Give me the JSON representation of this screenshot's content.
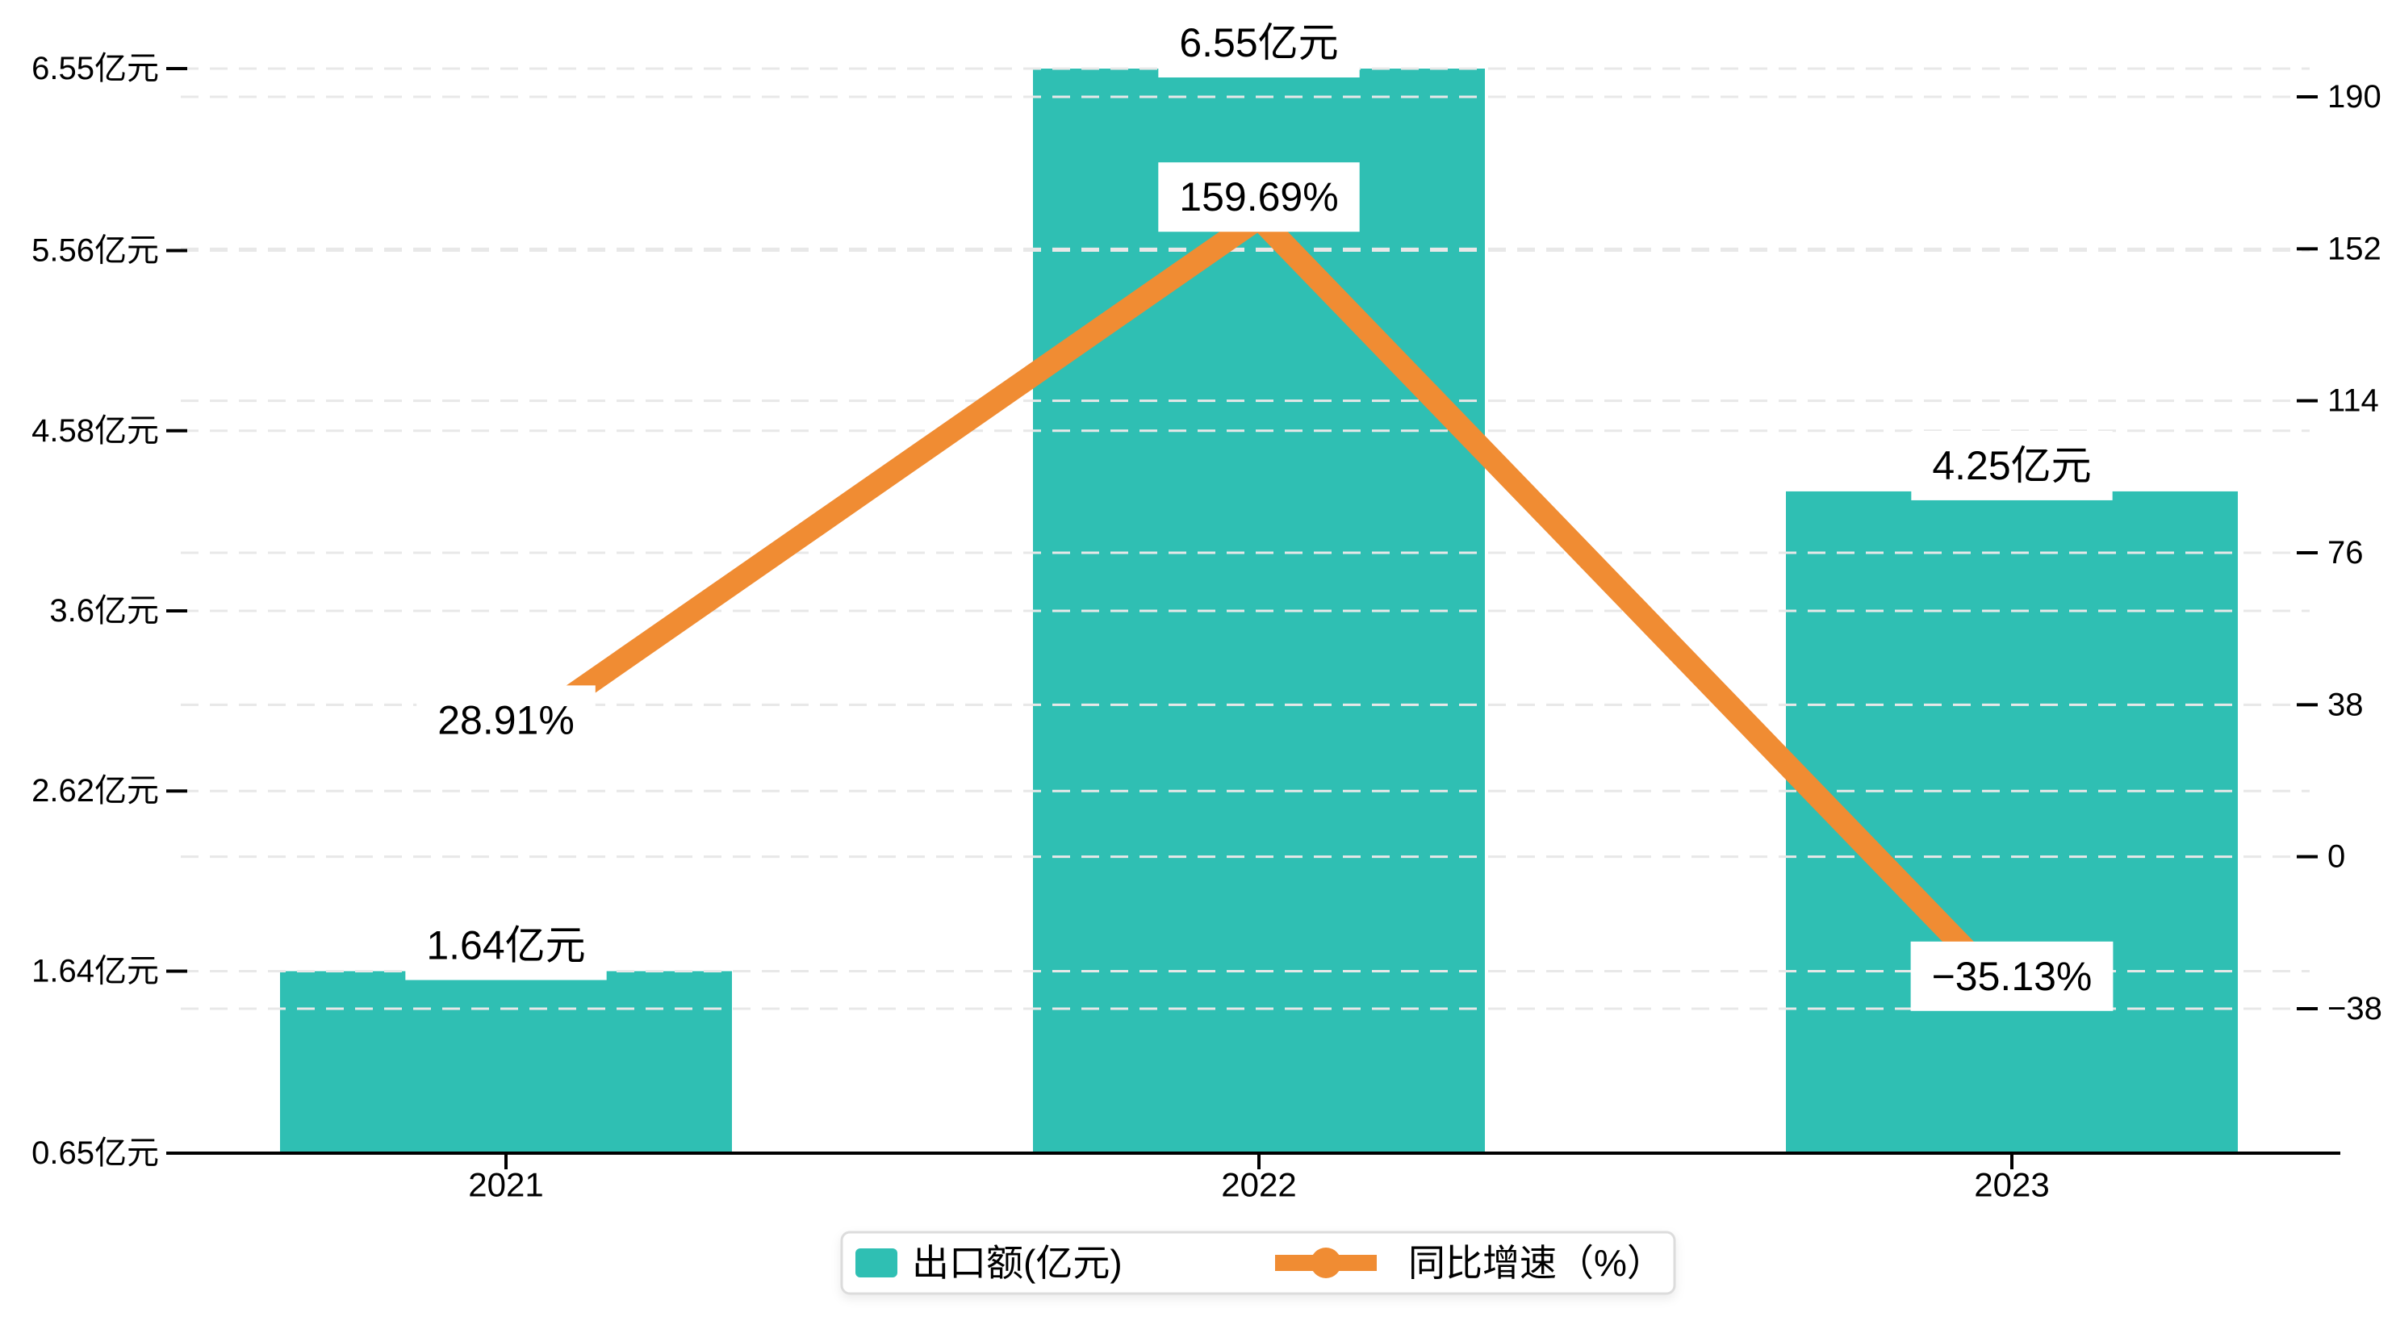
{
  "chart_data": {
    "type": "bar+line",
    "categories": [
      "2021",
      "2022",
      "2023"
    ],
    "series": [
      {
        "name": "出口额(亿元)",
        "type": "bar",
        "axis": "left",
        "values": [
          1.64,
          6.55,
          4.25
        ],
        "labels": [
          "1.64亿元",
          "6.55亿元",
          "4.25亿元"
        ],
        "color": "#2FBFB3"
      },
      {
        "name": "同比增速（%）",
        "type": "line",
        "axis": "right",
        "values": [
          28.91,
          159.69,
          -35.13
        ],
        "labels": [
          "28.91%",
          "159.69%",
          "−35.13%"
        ],
        "color": "#F08C33"
      }
    ],
    "left_axis": {
      "min": 0.65,
      "max": 6.55,
      "ticks": [
        0.65,
        1.64,
        2.62,
        3.6,
        4.58,
        5.56,
        6.55
      ],
      "tick_labels": [
        "0.65亿元",
        "1.64亿元",
        "2.62亿元",
        "3.6亿元",
        "4.58亿元",
        "5.56亿元",
        "6.55亿元"
      ]
    },
    "right_axis": {
      "tick_min": -38,
      "tick_max": 190,
      "ticks": [
        -38,
        0,
        38,
        76,
        114,
        152,
        190
      ],
      "tick_labels": [
        "−38",
        "0",
        "38",
        "76",
        "114",
        "152",
        "190"
      ]
    },
    "legend": {
      "items": [
        {
          "label": "出口额(亿元)",
          "marker": "bar-swatch",
          "color": "#2FBFB3"
        },
        {
          "label": "同比增速（%）",
          "marker": "line-dot",
          "color": "#F08C33"
        }
      ]
    },
    "grid": {
      "show": true,
      "style": "dashed",
      "color": "#E8E8E8"
    },
    "colors": {
      "bar": "#2FBFB3",
      "line": "#F08C33",
      "axis": "#000000",
      "label_text": "#000000",
      "label_box": "#FFFFFF",
      "legend_border": "#DCDCDC",
      "background": "#FFFFFF"
    },
    "legend_position": "bottom-center"
  }
}
